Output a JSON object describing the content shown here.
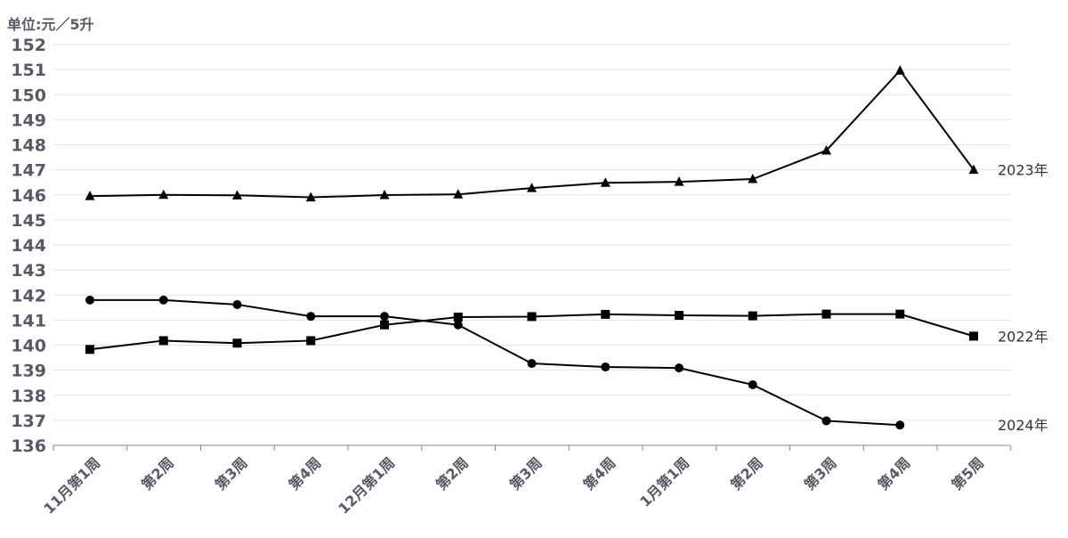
{
  "chart_data": {
    "type": "line",
    "unit_label": "单位:元／5升",
    "categories": [
      "11月第1周",
      "第2周",
      "第3周",
      "第4周",
      "12月第1周",
      "第2周",
      "第3周",
      "第4周",
      "1月第1周",
      "第2周",
      "第3周",
      "第4周",
      "第5周"
    ],
    "ylim": [
      136,
      152
    ],
    "yticks": [
      136,
      137,
      138,
      139,
      140,
      141,
      142,
      143,
      144,
      145,
      146,
      147,
      148,
      149,
      150,
      151,
      152
    ],
    "grid": true,
    "series": [
      {
        "name": "2023年",
        "marker": "triangle",
        "values": [
          145.95,
          146.0,
          145.98,
          145.9,
          145.99,
          146.02,
          146.27,
          146.48,
          146.52,
          146.63,
          147.77,
          150.96,
          147.0
        ]
      },
      {
        "name": "2022年",
        "marker": "square",
        "values": [
          139.83,
          140.18,
          140.08,
          140.18,
          140.81,
          141.12,
          141.14,
          141.23,
          141.19,
          141.17,
          141.24,
          141.24,
          140.36
        ]
      },
      {
        "name": "2024年",
        "marker": "circle",
        "values": [
          141.8,
          141.8,
          141.62,
          141.15,
          141.15,
          140.81,
          139.27,
          139.13,
          139.09,
          138.42,
          136.98,
          136.81,
          null
        ]
      }
    ],
    "colors": {
      "line": "#000000",
      "grid": "#dfe3ea",
      "axis": "#888888",
      "tick_label": "#555b66",
      "series_label": "#333333"
    }
  }
}
